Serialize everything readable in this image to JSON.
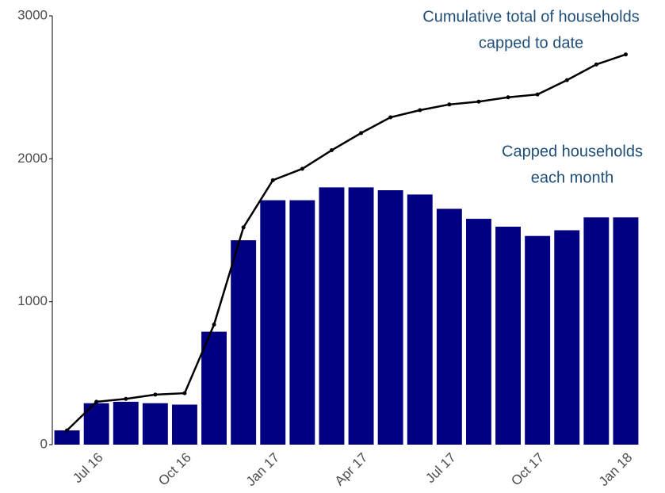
{
  "chart_data": {
    "type": "bar",
    "categories": [
      null,
      "Jul 16",
      null,
      null,
      "Oct 16",
      null,
      null,
      "Jan 17",
      null,
      null,
      "Apr 17",
      null,
      null,
      "Jul 17",
      null,
      null,
      "Oct 17",
      null,
      null,
      "Jan 18"
    ],
    "series": [
      {
        "type": "bar",
        "color": "#000080",
        "values": [
          100,
          290,
          300,
          290,
          280,
          790,
          1430,
          1710,
          1710,
          1800,
          1800,
          1780,
          1750,
          1650,
          1580,
          1525,
          1460,
          1500,
          1590,
          1590
        ]
      },
      {
        "type": "line",
        "color": "#000000",
        "values": [
          100,
          300,
          320,
          350,
          360,
          840,
          1520,
          1850,
          1930,
          2060,
          2180,
          2290,
          2340,
          2380,
          2400,
          2430,
          2450,
          2550,
          2660,
          2730
        ]
      }
    ],
    "annotations": [
      {
        "lines": [
          "Cumulative total of households",
          "capped to date"
        ]
      },
      {
        "lines": [
          "Capped households",
          "each month"
        ]
      }
    ],
    "annotation_color": "#1f4e79",
    "ylim": [
      0,
      3000
    ],
    "yticks": [
      0,
      1000,
      2000,
      3000
    ]
  }
}
